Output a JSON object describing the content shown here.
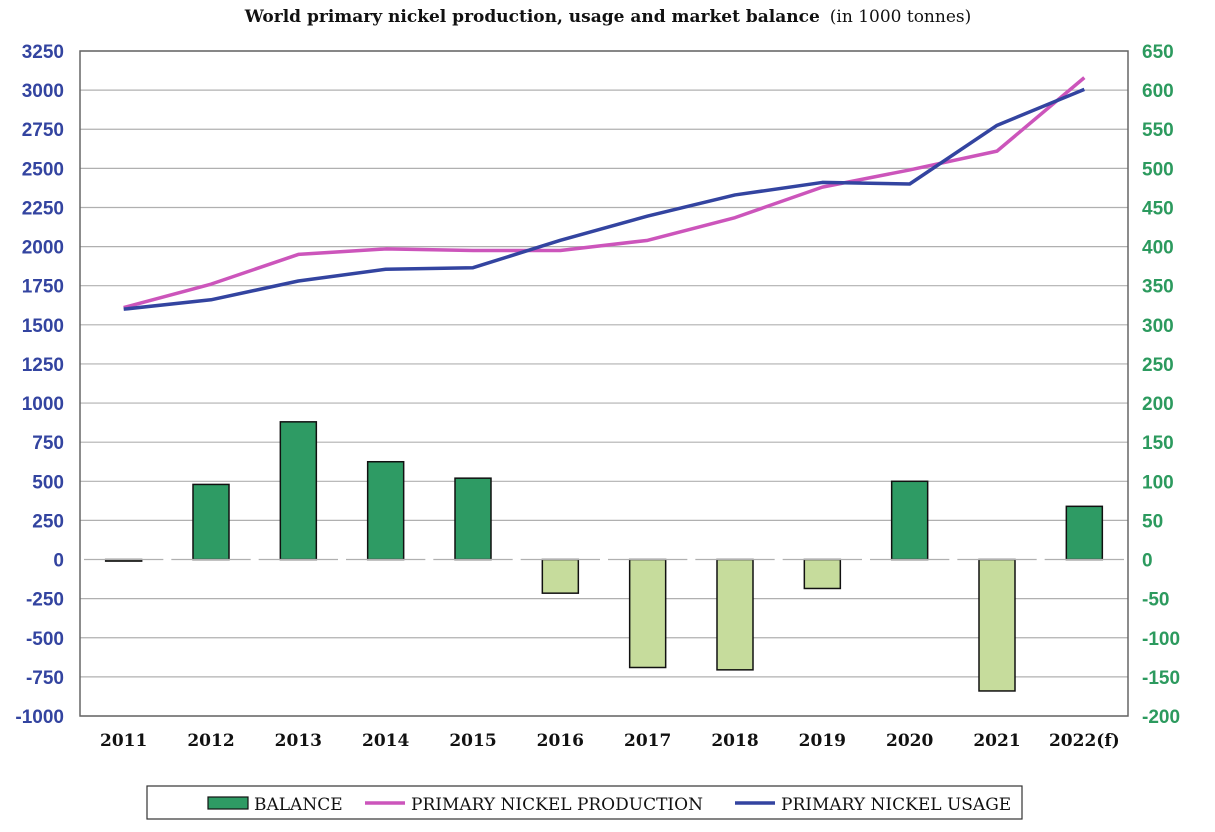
{
  "chart_data": {
    "type": "bar",
    "title": "World primary nickel production, usage and market balance",
    "title_unit": "(in 1000 tonnes)",
    "categories": [
      "2011",
      "2012",
      "2013",
      "2014",
      "2015",
      "2016",
      "2017",
      "2018",
      "2019",
      "2020",
      "2021",
      "2022(f)"
    ],
    "ylim": [
      -1000,
      3250
    ],
    "yticks": [
      3250,
      3000,
      2750,
      2500,
      2250,
      2000,
      1750,
      1500,
      1250,
      1000,
      750,
      500,
      250,
      0,
      -250,
      -500,
      -750,
      -1000
    ],
    "y2lim": [
      -200,
      650
    ],
    "y2ticks": [
      650,
      600,
      550,
      500,
      450,
      400,
      350,
      300,
      250,
      200,
      150,
      100,
      50,
      0,
      -50,
      -100,
      -150,
      -200
    ],
    "grid": true,
    "legend_position": "bottom",
    "series": [
      {
        "name": "BALANCE",
        "kind": "bar",
        "axis": "right",
        "values": [
          -2,
          96,
          176,
          125,
          104,
          -43,
          -138,
          -141,
          -37,
          100,
          -168,
          68
        ]
      },
      {
        "name": "PRIMARY NICKEL PRODUCTION",
        "kind": "line",
        "axis": "left",
        "values": [
          1610,
          1760,
          1950,
          1985,
          1975,
          1975,
          2040,
          2185,
          2380,
          2490,
          2610,
          3080
        ]
      },
      {
        "name": "PRIMARY NICKEL USAGE",
        "kind": "line",
        "axis": "left",
        "values": [
          1600,
          1660,
          1780,
          1855,
          1865,
          2040,
          2195,
          2330,
          2410,
          2400,
          2775,
          3005
        ]
      }
    ],
    "colors": {
      "bar_positive": "#2e9b64",
      "bar_negative": "#c6dc9c",
      "production": "#cc55bb",
      "usage": "#3344a0",
      "left_axis": "#3344a0",
      "right_axis": "#2c9a5e",
      "grid": "#b0b0b0"
    }
  }
}
